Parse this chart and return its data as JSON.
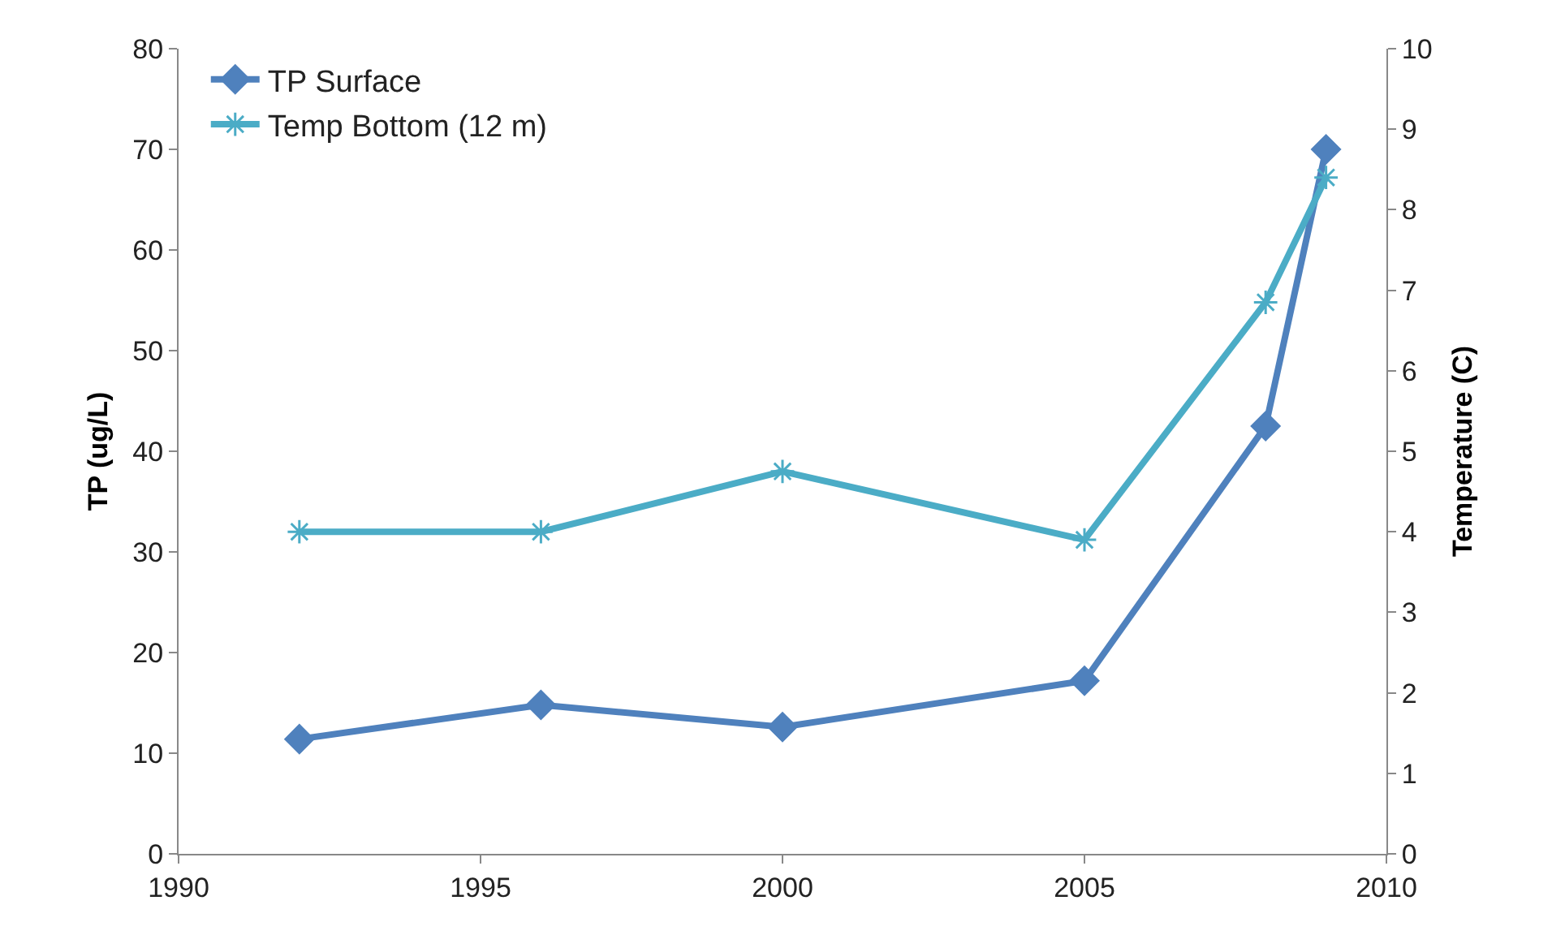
{
  "chart_data": {
    "type": "line",
    "xlabel": null,
    "ylabel": "TP (ug/L)",
    "y2label": "Temperature (C)",
    "series": [
      {
        "name": "TP Surface",
        "color": "#4f81bd",
        "marker": "diamond",
        "x": [
          1992,
          1996,
          2000,
          2005,
          2008,
          2009
        ],
        "values": [
          11.4,
          14.8,
          12.6,
          17.2,
          42.5,
          70
        ]
      },
      {
        "name": "Temp Bottom (12 m)",
        "color": "#4bacc6",
        "marker": "cross",
        "axis": "y2",
        "x": [
          1992,
          1996,
          2000,
          2005,
          2008,
          2009
        ],
        "values": [
          4.0,
          4.0,
          4.75,
          3.9,
          6.85,
          8.4
        ]
      }
    ],
    "xlim": [
      1990,
      2010
    ],
    "xticks": [
      1990,
      1995,
      2000,
      2005,
      2010
    ],
    "ylim": [
      0,
      80
    ],
    "yticks": [
      0,
      10,
      20,
      30,
      40,
      50,
      60,
      70,
      80
    ],
    "y2lim": [
      0,
      10
    ],
    "y2ticks": [
      0,
      1,
      2,
      3,
      4,
      5,
      6,
      7,
      8,
      9,
      10
    ],
    "grid": false,
    "legend": "top left",
    "line_style": "solid"
  }
}
